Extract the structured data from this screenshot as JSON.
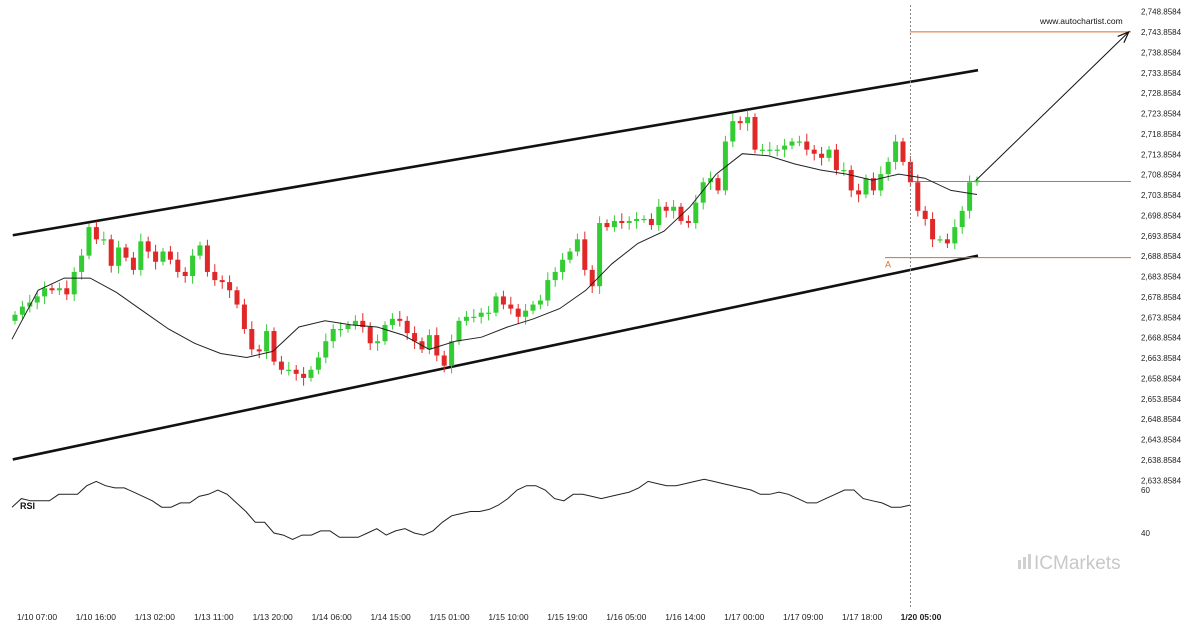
{
  "chart_data": {
    "type": "candlestick",
    "instrument_site": "www.autochartist.com",
    "brand": "ICMarkets",
    "y_axis_ticks": [
      "2,748.8584",
      "2,743.8584",
      "2,738.8584",
      "2,733.8584",
      "2,728.8584",
      "2,723.8584",
      "2,718.8584",
      "2,713.8584",
      "2,708.8584",
      "2,703.8584",
      "2,698.8584",
      "2,693.8584",
      "2,688.8584",
      "2,683.8584",
      "2,678.8584",
      "2,673.8584",
      "2,668.8584",
      "2,663.8584",
      "2,658.8584",
      "2,653.8584",
      "2,648.8584",
      "2,643.8584",
      "2,638.8584",
      "2,633.8584"
    ],
    "ylim": [
      2631.5,
      2750
    ],
    "x_axis_ticks": [
      "1/10 07:00",
      "1/10 16:00",
      "1/13 02:00",
      "1/13 11:00",
      "1/13 20:00",
      "1/14 06:00",
      "1/14 15:00",
      "1/15 01:00",
      "1/15 10:00",
      "1/15 19:00",
      "1/16 05:00",
      "1/16 14:00",
      "1/17 00:00",
      "1/17 09:00",
      "1/17 18:00",
      "1/20 05:00"
    ],
    "x_axis_bold_tick": "1/20 05:00",
    "closes": [
      2674.5,
      2676.5,
      2677.5,
      2679,
      2681,
      2680.5,
      2681,
      2679.5,
      2685,
      2689,
      2696,
      2693,
      2693,
      2686.5,
      2691,
      2688.5,
      2685.5,
      2692.5,
      2690,
      2687.5,
      2690,
      2688,
      2685,
      2684,
      2689,
      2691.5,
      2685,
      2683,
      2682.5,
      2680.5,
      2677,
      2671,
      2666,
      2665.5,
      2670.5,
      2663,
      2661,
      2661,
      2660,
      2659,
      2661,
      2664,
      2668,
      2671,
      2671,
      2672,
      2673,
      2671.5,
      2667.5,
      2668,
      2672,
      2673.5,
      2673,
      2670,
      2668,
      2666,
      2669.5,
      2664.5,
      2662,
      2668,
      2673,
      2674,
      2674,
      2675,
      2675,
      2679,
      2677,
      2676,
      2674,
      2675.5,
      2677,
      2678,
      2683,
      2685,
      2688,
      2690,
      2693,
      2685.5,
      2681.5,
      2697,
      2696,
      2697.5,
      2697,
      2697.5,
      2698,
      2698,
      2696.5,
      2701,
      2700,
      2701,
      2697.5,
      2697,
      2702,
      2707,
      2708,
      2705,
      2717,
      2722,
      2721.5,
      2723,
      2715,
      2715,
      2715,
      2715,
      2716,
      2717,
      2717,
      2715,
      2714,
      2713,
      2715,
      2710,
      2710,
      2705,
      2704,
      2708,
      2705,
      2709,
      2712,
      2717,
      2712,
      2707,
      2700,
      2698,
      2693,
      2693,
      2692,
      2696,
      2700,
      2707,
      2707.5
    ],
    "sma_values": [
      2668.5,
      2680.5,
      2683.5,
      2683.5,
      2680,
      2675.5,
      2671,
      2667.5,
      2665,
      2664,
      2665.5,
      2671.5,
      2673,
      2672,
      2671.5,
      2669.5,
      2666,
      2668,
      2669,
      2671.5,
      2673.5,
      2676,
      2680.5,
      2687,
      2692,
      2695,
      2701,
      2709,
      2714,
      2713.5,
      2711.5,
      2710,
      2709,
      2707.5,
      2709,
      2708,
      2705,
      2704
    ],
    "rsi": {
      "title": "RSI",
      "ticks": [
        "60",
        "40"
      ],
      "values": [
        52,
        56,
        55,
        55,
        55,
        58,
        58,
        58,
        62,
        64,
        62,
        61,
        61,
        59,
        57,
        55,
        52,
        52,
        54,
        54,
        57,
        58,
        60,
        58,
        54,
        50,
        45,
        45,
        40,
        39,
        37,
        39,
        39,
        41,
        41,
        38,
        38,
        38,
        40,
        42,
        39,
        41,
        42,
        40,
        39,
        41,
        45,
        48,
        49,
        50,
        50,
        51,
        53,
        56,
        60,
        62,
        62,
        60,
        56,
        55,
        58,
        58,
        57,
        56,
        57,
        58,
        59,
        61,
        64,
        63,
        62,
        62,
        63,
        64,
        65,
        64,
        63,
        62,
        61,
        60,
        58,
        58,
        59,
        58,
        56,
        54,
        54,
        56,
        58,
        60,
        60,
        56,
        55,
        54,
        52,
        52,
        53
      ]
    },
    "pattern": {
      "type": "ascending channel",
      "point_label": "A",
      "upper_channel": [
        [
          0,
          2694
        ],
        [
          130,
          2734.5
        ]
      ],
      "lower_channel": [
        [
          0,
          2639
        ],
        [
          130,
          2689
        ]
      ],
      "resistance_level": 2743.9,
      "current_level": 2707.2,
      "support_level": 2688.5,
      "projection": [
        [
          130,
          2707.5
        ],
        [
          147,
          2743.9
        ]
      ]
    },
    "colors": {
      "up_candle": "#33cc33",
      "down_candle": "#e02828",
      "level_lines": "#e06a2a",
      "channel": "#111111",
      "sma": "#222222",
      "rsi": "#222222",
      "projection": "#111111"
    }
  }
}
